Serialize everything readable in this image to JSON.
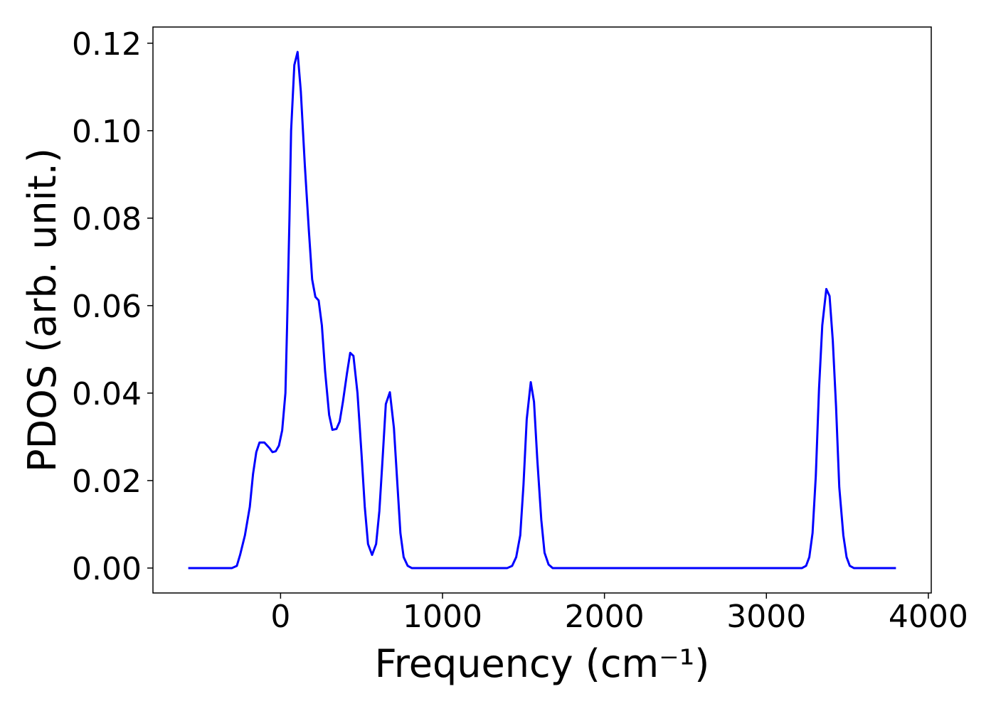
{
  "chart_data": {
    "type": "line",
    "xlabel": "Frequency (cm⁻¹)",
    "ylabel": "PDOS (arb. unit.)",
    "x": [
      -570,
      -300,
      -270,
      -250,
      -220,
      -190,
      -170,
      -150,
      -130,
      -100,
      -70,
      -50,
      -30,
      -10,
      10,
      30,
      40,
      55,
      65,
      85,
      105,
      125,
      150,
      175,
      195,
      215,
      235,
      255,
      275,
      300,
      320,
      345,
      365,
      385,
      410,
      430,
      450,
      475,
      500,
      520,
      540,
      565,
      590,
      610,
      630,
      650,
      675,
      700,
      720,
      740,
      760,
      785,
      810,
      1400,
      1430,
      1455,
      1480,
      1500,
      1520,
      1545,
      1565,
      1585,
      1610,
      1630,
      1655,
      1680,
      3220,
      3245,
      3265,
      3285,
      3305,
      3325,
      3345,
      3370,
      3390,
      3410,
      3430,
      3450,
      3475,
      3495,
      3515,
      3540,
      3800
    ],
    "series": [
      {
        "color": "#0000ff",
        "values": [
          0,
          0,
          0.0005,
          0.003,
          0.0075,
          0.014,
          0.0215,
          0.0265,
          0.0287,
          0.0287,
          0.0275,
          0.0265,
          0.0267,
          0.028,
          0.0315,
          0.04,
          0.055,
          0.08,
          0.1,
          0.115,
          0.118,
          0.109,
          0.092,
          0.077,
          0.066,
          0.062,
          0.0612,
          0.0555,
          0.045,
          0.035,
          0.0316,
          0.0318,
          0.0335,
          0.038,
          0.0445,
          0.0492,
          0.0485,
          0.04,
          0.026,
          0.014,
          0.0055,
          0.003,
          0.0055,
          0.013,
          0.025,
          0.0375,
          0.0402,
          0.032,
          0.02,
          0.008,
          0.0025,
          0.0005,
          0,
          0,
          0.0005,
          0.0025,
          0.0075,
          0.019,
          0.034,
          0.0425,
          0.038,
          0.025,
          0.011,
          0.0035,
          0.0008,
          0,
          0,
          0.0005,
          0.0025,
          0.008,
          0.021,
          0.041,
          0.0555,
          0.0638,
          0.0622,
          0.052,
          0.037,
          0.0185,
          0.0075,
          0.0025,
          0.0005,
          0,
          0
        ]
      }
    ],
    "xlim": [
      -788,
      4018
    ],
    "ylim": [
      -0.0057,
      0.1237
    ],
    "xticks": [
      0,
      1000,
      2000,
      3000,
      4000
    ],
    "yticks": [
      {
        "value": 0,
        "label": "0.00"
      },
      {
        "value": 0.02,
        "label": "0.02"
      },
      {
        "value": 0.04,
        "label": "0.04"
      },
      {
        "value": 0.06,
        "label": "0.06"
      },
      {
        "value": 0.08,
        "label": "0.08"
      },
      {
        "value": 0.1,
        "label": "0.10"
      },
      {
        "value": 0.12,
        "label": "0.12"
      }
    ]
  }
}
